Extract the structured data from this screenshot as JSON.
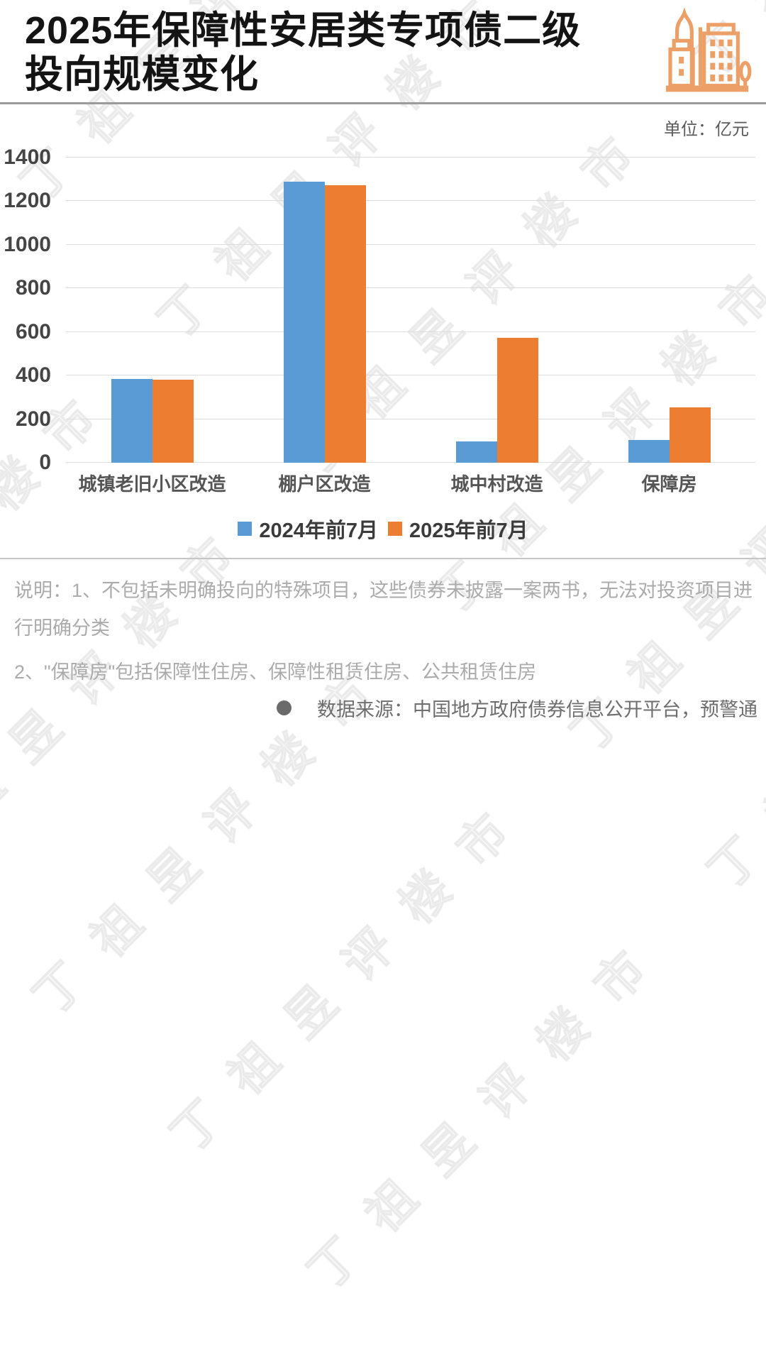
{
  "title": {
    "line1": "2025年保障性安居类专项债二级",
    "line2": "投向规模变化"
  },
  "unit_label": "单位：亿元",
  "watermark_text": "丁祖昱评楼市",
  "icon_name": "city-buildings-icon",
  "colors": {
    "series_2024": "#5B9BD5",
    "series_2025": "#ED7D31",
    "icon_orange": "#ED9F68",
    "gridline": "#DCDCDC",
    "note_gray": "#ABABAB"
  },
  "chart_data": {
    "type": "bar",
    "categories": [
      "城镇老旧小区改造",
      "棚户区改造",
      "城中村改造",
      "保障房"
    ],
    "series": [
      {
        "name": "2024年前7月",
        "color": "#5B9BD5",
        "values": [
          384,
          1290,
          98,
          104
        ]
      },
      {
        "name": "2025年前7月",
        "color": "#ED7D31",
        "values": [
          380,
          1273,
          573,
          253
        ]
      }
    ],
    "title": "2025年保障性安居类专项债二级投向规模变化",
    "xlabel": "",
    "ylabel": "亿元",
    "ylim": [
      0,
      1400
    ],
    "ytick_step": 200,
    "grid": true,
    "legend_position": "bottom"
  },
  "notes": {
    "note1": "说明：1、不包括未明确投向的特殊项目，这些债券未披露一案两书，无法对投资项目进行明确分类",
    "note2": "2、\"保障房\"包括保障性住房、保障性租赁住房、公共租赁住房"
  },
  "source": {
    "text": "数据来源：中国地方政府债券信息公开平台，预警通"
  }
}
